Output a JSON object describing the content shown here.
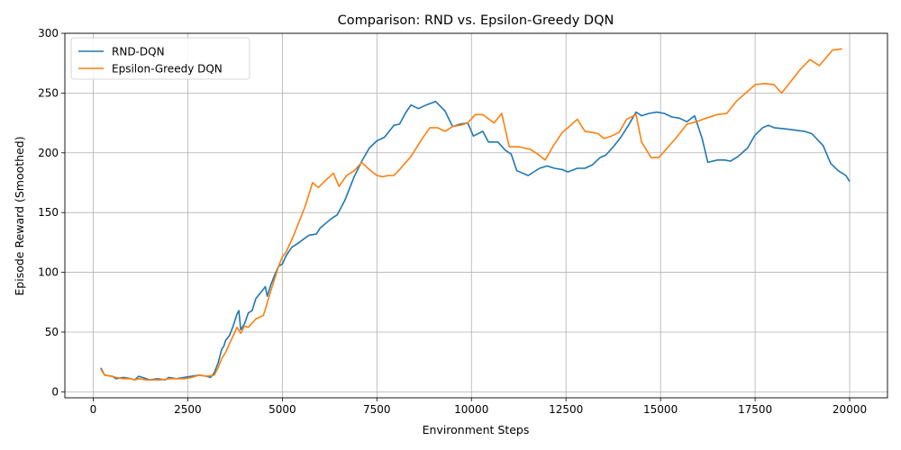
{
  "chart_data": {
    "type": "line",
    "title": "Comparison: RND vs. Epsilon-Greedy DQN",
    "xlabel": "Environment Steps",
    "ylabel": "Episode Reward (Smoothed)",
    "xlim": [
      -750,
      21000
    ],
    "ylim": [
      -5,
      300
    ],
    "xticks": [
      0,
      2500,
      5000,
      7500,
      10000,
      12500,
      15000,
      17500,
      20000
    ],
    "xtick_labels": [
      "0",
      "2500",
      "5000",
      "7500",
      "10000",
      "12500",
      "15000",
      "17500",
      "20000"
    ],
    "yticks": [
      0,
      50,
      100,
      150,
      200,
      250,
      300
    ],
    "ytick_labels": [
      "0",
      "50",
      "100",
      "150",
      "200",
      "250",
      "300"
    ],
    "grid": true,
    "legend_position": "top-left",
    "series": [
      {
        "name": "RND-DQN",
        "color": "#1f77b4",
        "points": [
          [
            200,
            20
          ],
          [
            300,
            14
          ],
          [
            500,
            13
          ],
          [
            600,
            11
          ],
          [
            800,
            12
          ],
          [
            1000,
            11
          ],
          [
            1100,
            10
          ],
          [
            1200,
            13
          ],
          [
            1300,
            12
          ],
          [
            1500,
            10
          ],
          [
            1700,
            11
          ],
          [
            1900,
            10
          ],
          [
            2000,
            12
          ],
          [
            2200,
            11
          ],
          [
            2400,
            12
          ],
          [
            2600,
            13
          ],
          [
            2800,
            14
          ],
          [
            3000,
            13
          ],
          [
            3100,
            12
          ],
          [
            3200,
            16
          ],
          [
            3300,
            24
          ],
          [
            3400,
            36
          ],
          [
            3450,
            38
          ],
          [
            3500,
            43
          ],
          [
            3600,
            47
          ],
          [
            3700,
            55
          ],
          [
            3800,
            65
          ],
          [
            3850,
            68
          ],
          [
            3900,
            52
          ],
          [
            4000,
            57
          ],
          [
            4100,
            66
          ],
          [
            4200,
            68
          ],
          [
            4300,
            78
          ],
          [
            4500,
            86
          ],
          [
            4550,
            88
          ],
          [
            4600,
            80
          ],
          [
            4700,
            90
          ],
          [
            4800,
            98
          ],
          [
            4900,
            105
          ],
          [
            5000,
            107
          ],
          [
            5100,
            114
          ],
          [
            5250,
            121
          ],
          [
            5400,
            124
          ],
          [
            5700,
            131
          ],
          [
            5900,
            132
          ],
          [
            6000,
            137
          ],
          [
            6300,
            145
          ],
          [
            6450,
            148
          ],
          [
            6650,
            160
          ],
          [
            6900,
            180
          ],
          [
            7100,
            193
          ],
          [
            7300,
            204
          ],
          [
            7500,
            210
          ],
          [
            7700,
            213
          ],
          [
            7950,
            223
          ],
          [
            8100,
            224
          ],
          [
            8250,
            233
          ],
          [
            8400,
            240
          ],
          [
            8600,
            237
          ],
          [
            8800,
            240
          ],
          [
            9050,
            243
          ],
          [
            9300,
            235
          ],
          [
            9500,
            222
          ],
          [
            9700,
            224
          ],
          [
            9900,
            225
          ],
          [
            10050,
            214
          ],
          [
            10300,
            218
          ],
          [
            10450,
            209
          ],
          [
            10700,
            209
          ],
          [
            10900,
            202
          ],
          [
            11050,
            199
          ],
          [
            11200,
            185
          ],
          [
            11500,
            181
          ],
          [
            11800,
            187
          ],
          [
            12000,
            189
          ],
          [
            12200,
            187
          ],
          [
            12400,
            186
          ],
          [
            12550,
            184
          ],
          [
            12800,
            187
          ],
          [
            13000,
            187
          ],
          [
            13200,
            190
          ],
          [
            13400,
            196
          ],
          [
            13550,
            198
          ],
          [
            13750,
            205
          ],
          [
            13950,
            213
          ],
          [
            14150,
            223
          ],
          [
            14350,
            234
          ],
          [
            14500,
            231
          ],
          [
            14700,
            233
          ],
          [
            14900,
            234
          ],
          [
            15100,
            233
          ],
          [
            15300,
            230
          ],
          [
            15500,
            229
          ],
          [
            15700,
            226
          ],
          [
            15900,
            231
          ],
          [
            16100,
            212
          ],
          [
            16250,
            192
          ],
          [
            16500,
            194
          ],
          [
            16700,
            194
          ],
          [
            16850,
            193
          ],
          [
            17050,
            197
          ],
          [
            17300,
            204
          ],
          [
            17500,
            215
          ],
          [
            17700,
            221
          ],
          [
            17850,
            223
          ],
          [
            18000,
            221
          ],
          [
            18300,
            220
          ],
          [
            18550,
            219
          ],
          [
            18800,
            218
          ],
          [
            19000,
            216
          ],
          [
            19300,
            206
          ],
          [
            19500,
            191
          ],
          [
            19700,
            185
          ],
          [
            19900,
            181
          ],
          [
            20000,
            176
          ]
        ]
      },
      {
        "name": "Epsilon-Greedy DQN",
        "color": "#ff7f0e",
        "points": [
          [
            200,
            19
          ],
          [
            300,
            14
          ],
          [
            500,
            13
          ],
          [
            600,
            12
          ],
          [
            800,
            11
          ],
          [
            1000,
            11
          ],
          [
            1100,
            10
          ],
          [
            1200,
            11
          ],
          [
            1400,
            10
          ],
          [
            1600,
            10
          ],
          [
            1800,
            10
          ],
          [
            2000,
            11
          ],
          [
            2200,
            11
          ],
          [
            2400,
            11
          ],
          [
            2600,
            12
          ],
          [
            2800,
            14
          ],
          [
            3000,
            13
          ],
          [
            3200,
            14
          ],
          [
            3300,
            20
          ],
          [
            3400,
            28
          ],
          [
            3500,
            33
          ],
          [
            3600,
            40
          ],
          [
            3700,
            47
          ],
          [
            3800,
            54
          ],
          [
            3900,
            49
          ],
          [
            4000,
            55
          ],
          [
            4100,
            54
          ],
          [
            4300,
            61
          ],
          [
            4500,
            64
          ],
          [
            4700,
            85
          ],
          [
            4900,
            105
          ],
          [
            5000,
            113
          ],
          [
            5100,
            117
          ],
          [
            5300,
            131
          ],
          [
            5600,
            155
          ],
          [
            5800,
            175
          ],
          [
            5950,
            171
          ],
          [
            6150,
            177
          ],
          [
            6350,
            183
          ],
          [
            6500,
            172
          ],
          [
            6700,
            181
          ],
          [
            6900,
            185
          ],
          [
            7100,
            192
          ],
          [
            7300,
            186
          ],
          [
            7500,
            181
          ],
          [
            7650,
            180
          ],
          [
            7800,
            181
          ],
          [
            7950,
            181
          ],
          [
            8100,
            186
          ],
          [
            8400,
            197
          ],
          [
            8700,
            212
          ],
          [
            8900,
            221
          ],
          [
            9100,
            221
          ],
          [
            9300,
            218
          ],
          [
            9500,
            222
          ],
          [
            9700,
            223
          ],
          [
            9900,
            225
          ],
          [
            10100,
            232
          ],
          [
            10300,
            232
          ],
          [
            10600,
            225
          ],
          [
            10800,
            233
          ],
          [
            11000,
            205
          ],
          [
            11250,
            205
          ],
          [
            11550,
            203
          ],
          [
            11750,
            199
          ],
          [
            11950,
            194
          ],
          [
            12150,
            205
          ],
          [
            12400,
            217
          ],
          [
            12550,
            221
          ],
          [
            12800,
            228
          ],
          [
            13000,
            218
          ],
          [
            13200,
            217
          ],
          [
            13350,
            216
          ],
          [
            13500,
            212
          ],
          [
            13700,
            214
          ],
          [
            13900,
            217
          ],
          [
            14100,
            228
          ],
          [
            14350,
            232
          ],
          [
            14500,
            209
          ],
          [
            14750,
            196
          ],
          [
            14950,
            196
          ],
          [
            15150,
            203
          ],
          [
            15400,
            212
          ],
          [
            15700,
            224
          ],
          [
            15950,
            226
          ],
          [
            16200,
            229
          ],
          [
            16500,
            232
          ],
          [
            16750,
            233
          ],
          [
            17000,
            243
          ],
          [
            17250,
            250
          ],
          [
            17500,
            257
          ],
          [
            17750,
            258
          ],
          [
            18000,
            257
          ],
          [
            18200,
            250
          ],
          [
            18450,
            260
          ],
          [
            18700,
            270
          ],
          [
            18950,
            278
          ],
          [
            19200,
            273
          ],
          [
            19550,
            286
          ],
          [
            19800,
            287
          ]
        ]
      }
    ]
  }
}
